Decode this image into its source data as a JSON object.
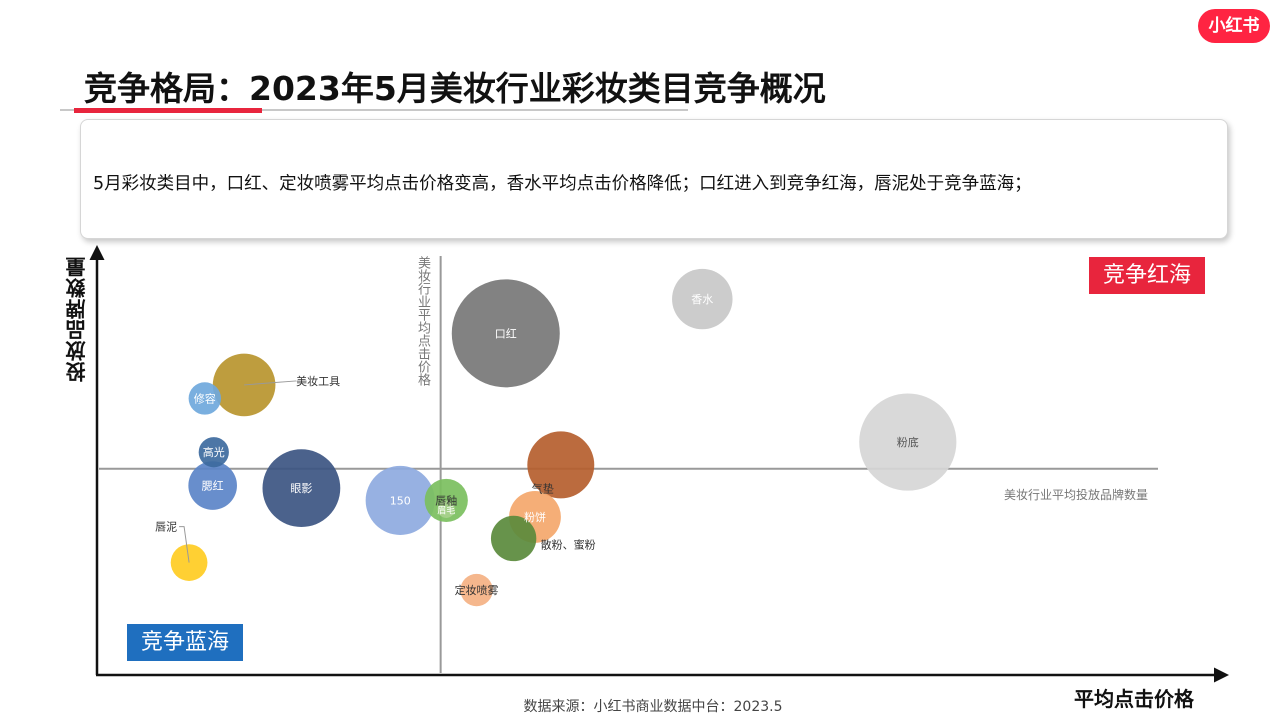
{
  "brand": {
    "logo_text": "小红书",
    "brand_color": "#ff2442"
  },
  "title": "竞争格局：2023年5月美妆行业彩妆类目竞争概况",
  "summary": "5月彩妆类目中，口红、定妆喷雾平均点击价格变高，香水平均点击价格降低；口红进入到竞争红海，唇泥处于竞争蓝海；",
  "footer": "数据来源：小红书商业数据中台：2023.5",
  "quadrants": {
    "red_sea": {
      "label": "竞争红海",
      "color": "#e8253d"
    },
    "blue_sea": {
      "label": "竞争蓝海",
      "color": "#1f6fbf"
    }
  },
  "chart_data": {
    "type": "scatter",
    "subtype": "bubble",
    "xlabel": "平均点击价格",
    "ylabel": "投放品牌数量",
    "axis_tick_labels": "none",
    "xlim": [
      0,
      100
    ],
    "ylim": [
      0,
      100
    ],
    "grid": false,
    "reference_lines": {
      "x": {
        "value": 30.6,
        "label": "美妆行业平均点击价格",
        "color": "#999999"
      },
      "y": {
        "value": 48.3,
        "label": "美妆行业平均投放品牌数量",
        "color": "#999999"
      }
    },
    "points": [
      {
        "name": "口红",
        "label": "口红",
        "x": 36.4,
        "y": 80.3,
        "size": 100,
        "color": "#777777",
        "label_color": "#ffffff",
        "label_pos": "center"
      },
      {
        "name": "香水",
        "label": "香水",
        "x": 53.9,
        "y": 88.4,
        "size": 56,
        "color": "#c8c8c8",
        "label_color": "#ffffff",
        "label_pos": "center"
      },
      {
        "name": "粉底",
        "label": "粉底",
        "x": 72.2,
        "y": 54.6,
        "size": 90,
        "color": "#d6d6d6",
        "label_color": "#555555",
        "label_pos": "center"
      },
      {
        "name": "美妆工具",
        "label": "美妆工具",
        "x": 13.1,
        "y": 68.1,
        "size": 58,
        "color": "#b8952e",
        "label_color": "#333333",
        "label_pos": "right-leader"
      },
      {
        "name": "修容",
        "label": "修容",
        "x": 9.6,
        "y": 64.9,
        "size": 30,
        "color": "#6fa8dc",
        "label_color": "#ffffff",
        "label_pos": "center"
      },
      {
        "name": "高光",
        "label": "高光",
        "x": 10.4,
        "y": 52.2,
        "size": 28,
        "color": "#3d6a9e",
        "label_color": "#ffffff",
        "label_pos": "center"
      },
      {
        "name": "腮红",
        "label": "腮红",
        "x": 10.3,
        "y": 44.3,
        "size": 45,
        "color": "#5b84c8",
        "label_color": "#ffffff",
        "label_pos": "center"
      },
      {
        "name": "眼影",
        "label": "眼影",
        "x": 18.2,
        "y": 43.7,
        "size": 72,
        "color": "#3c5582",
        "label_color": "#ffffff",
        "label_pos": "center"
      },
      {
        "name": "150",
        "label": "150",
        "x": 27.0,
        "y": 40.8,
        "size": 64,
        "color": "#8eaadf",
        "label_color": "#ffffff",
        "label_pos": "center"
      },
      {
        "name": "唇釉",
        "label": "唇釉",
        "x": 31.1,
        "y": 40.8,
        "size": 40,
        "color": "#7bbf5e",
        "label_color": "#333333",
        "label_pos": "center"
      },
      {
        "name": "眉毛",
        "label": "眉毛",
        "x": 31.1,
        "y": 38.7,
        "size": 16,
        "color": "#a8d08d",
        "label_color": "#ffffff",
        "label_pos": "center"
      },
      {
        "name": "气垫",
        "label": "气垫",
        "x": 41.3,
        "y": 49.2,
        "size": 62,
        "color": "#b55e2e",
        "label_color": "#333333",
        "label_pos": "below"
      },
      {
        "name": "粉饼",
        "label": "粉饼",
        "x": 39.0,
        "y": 36.9,
        "size": 48,
        "color": "#f4a76b",
        "label_color": "#ffffff",
        "label_pos": "center"
      },
      {
        "name": "散粉、蜜粉",
        "label": "散粉、蜜粉",
        "x": 37.1,
        "y": 31.8,
        "size": 42,
        "color": "#5a8a3c",
        "label_color": "#333333",
        "label_pos": "right-below"
      },
      {
        "name": "定妆喷雾",
        "label": "定妆喷雾",
        "x": 33.8,
        "y": 19.6,
        "size": 30,
        "color": "#f4b183",
        "label_color": "#333333",
        "label_pos": "center"
      },
      {
        "name": "唇泥",
        "label": "唇泥",
        "x": 8.2,
        "y": 26.1,
        "size": 34,
        "color": "#ffcc22",
        "label_color": "#333333",
        "label_pos": "left-up-leader"
      }
    ]
  }
}
